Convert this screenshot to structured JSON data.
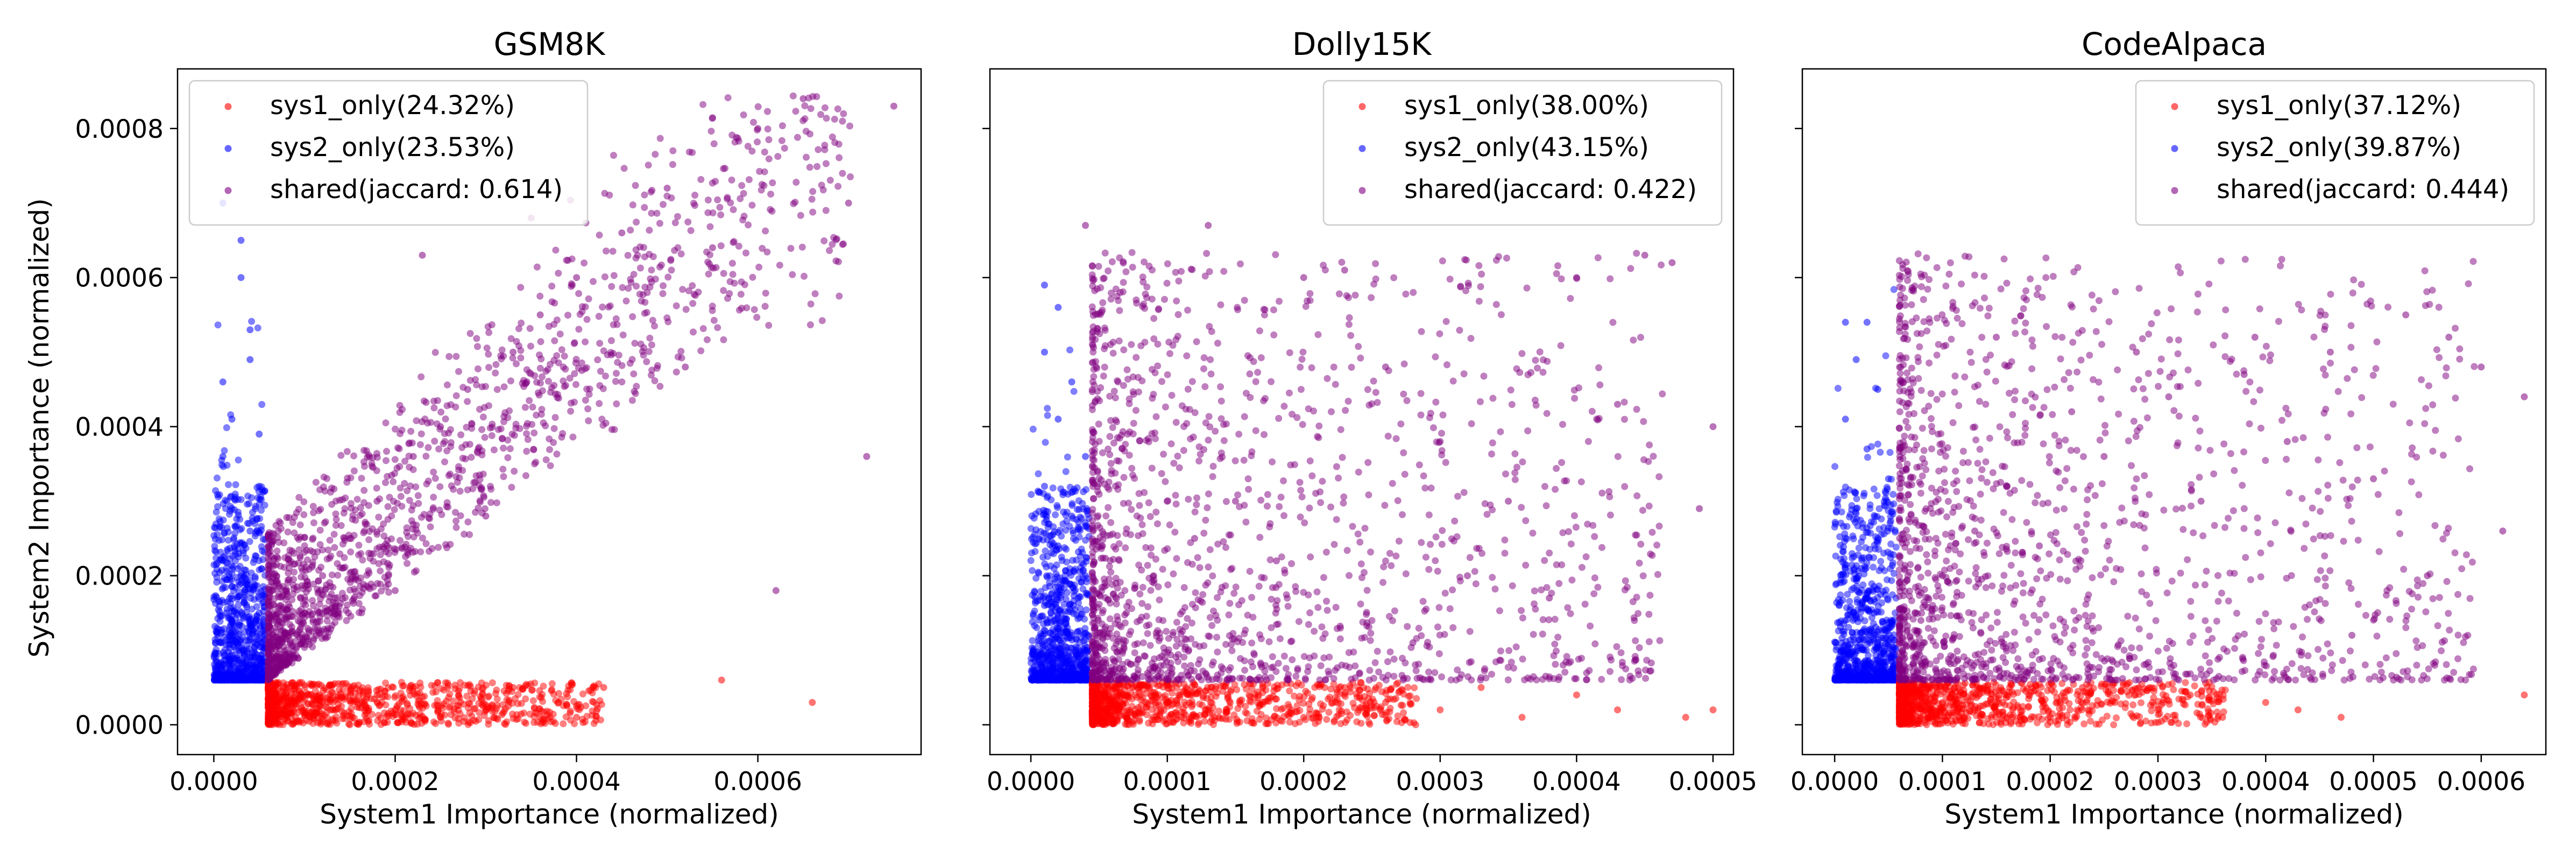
{
  "figure": {
    "ylabel": "System2 Importance (normalized)"
  },
  "colors": {
    "sys1_only": "#ff0000",
    "sys2_only": "#0000ff",
    "shared": "#800080"
  },
  "chart_data": [
    {
      "type": "scatter",
      "title": "GSM8K",
      "xlabel": "System1 Importance (normalized)",
      "ylabel": "System2 Importance (normalized)",
      "xlim": [
        -4e-05,
        0.00078
      ],
      "ylim": [
        -4e-05,
        0.00088
      ],
      "xticks": [
        0.0,
        0.0002,
        0.0004,
        0.0006
      ],
      "xtick_labels": [
        "0.0000",
        "0.0002",
        "0.0004",
        "0.0006"
      ],
      "yticks": [
        0.0,
        0.0002,
        0.0004,
        0.0006,
        0.0008
      ],
      "ytick_labels": [
        "0.0000",
        "0.0002",
        "0.0004",
        "0.0006",
        "0.0008"
      ],
      "legend_position": "top-left",
      "x_threshold": 6e-05,
      "y_threshold": 6e-05,
      "series": [
        {
          "name": "sys1_only(24.32%)",
          "color_key": "sys1_only",
          "points": [
            [
              7e-05,
              2e-05
            ],
            [
              9e-05,
              1e-05
            ],
            [
              0.00012,
              3e-05
            ],
            [
              0.00015,
              0.0
            ],
            [
              0.00018,
              4e-05
            ],
            [
              0.0002,
              2e-05
            ],
            [
              0.00022,
              5e-05
            ],
            [
              0.00025,
              1e-05
            ],
            [
              0.00027,
              4e-05
            ],
            [
              0.0003,
              2e-05
            ],
            [
              0.00033,
              5e-05
            ],
            [
              0.00036,
              1e-05
            ],
            [
              0.00038,
              3e-05
            ],
            [
              0.0004,
              1e-05
            ],
            [
              0.00043,
              5e-05
            ],
            [
              0.00056,
              6e-05
            ],
            [
              0.00066,
              3e-05
            ]
          ]
        },
        {
          "name": "sys2_only(23.53%)",
          "color_key": "sys2_only",
          "points": [
            [
              1e-05,
              0.0007
            ],
            [
              3e-05,
              0.00065
            ],
            [
              3e-05,
              0.0006
            ],
            [
              4e-05,
              0.00053
            ],
            [
              4e-05,
              0.00049
            ],
            [
              1e-05,
              0.00046
            ],
            [
              2e-05,
              0.00041
            ],
            [
              5e-05,
              0.00039
            ],
            [
              1e-05,
              0.00036
            ],
            [
              5e-05,
              0.00032
            ],
            [
              2e-05,
              0.00029
            ],
            [
              4e-05,
              0.00026
            ],
            [
              1e-05,
              0.00022
            ],
            [
              3e-05,
              0.00019
            ],
            [
              5e-05,
              0.00015
            ],
            [
              2e-05,
              0.00012
            ],
            [
              4e-05,
              9e-05
            ],
            [
              1e-05,
              8e-05
            ]
          ]
        },
        {
          "name": "shared(jaccard: 0.614)",
          "color_key": "shared",
          "points": [
            [
              8e-05,
              8e-05
            ],
            [
              0.0001,
              0.00015
            ],
            [
              0.00012,
              0.0002
            ],
            [
              0.00015,
              0.00025
            ],
            [
              0.00018,
              0.0003
            ],
            [
              0.0002,
              0.00018
            ],
            [
              0.00022,
              0.00036
            ],
            [
              0.00025,
              0.0004
            ],
            [
              0.00028,
              0.00045
            ],
            [
              0.0003,
              0.00028
            ],
            [
              0.00033,
              0.0005
            ],
            [
              0.00036,
              0.00055
            ],
            [
              0.0004,
              0.0006
            ],
            [
              0.00045,
              0.00066
            ],
            [
              0.0005,
              0.00072
            ],
            [
              0.00055,
              0.00064
            ],
            [
              0.0006,
              0.0008
            ],
            [
              0.00065,
              0.00084
            ],
            [
              0.0007,
              0.0007
            ],
            [
              0.00075,
              0.00083
            ],
            [
              0.00062,
              0.00018
            ],
            [
              0.00072,
              0.00036
            ],
            [
              0.00052,
              0.00048
            ],
            [
              0.00035,
              0.00068
            ],
            [
              0.00023,
              0.00063
            ]
          ]
        }
      ]
    },
    {
      "type": "scatter",
      "title": "Dolly15K",
      "xlabel": "System1 Importance (normalized)",
      "ylabel": "",
      "xlim": [
        -3e-05,
        0.000515
      ],
      "ylim": [
        -4e-05,
        0.00088
      ],
      "xticks": [
        0.0,
        0.0001,
        0.0002,
        0.0003,
        0.0004,
        0.0005
      ],
      "xtick_labels": [
        "0.0000",
        "0.0001",
        "0.0002",
        "0.0003",
        "0.0004",
        "0.0005"
      ],
      "yticks": [
        0.0,
        0.0002,
        0.0004,
        0.0006,
        0.0008
      ],
      "ytick_labels": [],
      "legend_position": "top-right",
      "x_threshold": 4.5e-05,
      "y_threshold": 6e-05,
      "series": [
        {
          "name": "sys1_only(38.00%)",
          "color_key": "sys1_only",
          "points": [
            [
              5e-05,
              2e-05
            ],
            [
              7e-05,
              1e-05
            ],
            [
              0.0001,
              3e-05
            ],
            [
              0.00013,
              2e-05
            ],
            [
              0.00016,
              4e-05
            ],
            [
              0.0002,
              1e-05
            ],
            [
              0.00023,
              5e-05
            ],
            [
              0.00026,
              3e-05
            ],
            [
              0.0003,
              2e-05
            ],
            [
              0.00033,
              5e-05
            ],
            [
              0.00036,
              1e-05
            ],
            [
              0.0004,
              4e-05
            ],
            [
              0.00043,
              2e-05
            ],
            [
              0.00048,
              1e-05
            ],
            [
              0.0005,
              2e-05
            ]
          ]
        },
        {
          "name": "sys2_only(43.15%)",
          "color_key": "sys2_only",
          "points": [
            [
              1e-05,
              0.00059
            ],
            [
              2e-05,
              0.00056
            ],
            [
              1e-05,
              0.0005
            ],
            [
              3e-05,
              0.00046
            ],
            [
              2e-05,
              0.00041
            ],
            [
              4e-05,
              0.00036
            ],
            [
              1e-05,
              0.00032
            ],
            [
              3e-05,
              0.00028
            ],
            [
              2e-05,
              0.00024
            ],
            [
              4e-05,
              0.0002
            ],
            [
              1e-05,
              0.00016
            ],
            [
              3e-05,
              0.00012
            ],
            [
              2e-05,
              9e-05
            ],
            [
              4e-05,
              7e-05
            ]
          ]
        },
        {
          "name": "shared(jaccard: 0.422)",
          "color_key": "shared",
          "points": [
            [
              5e-05,
              8e-05
            ],
            [
              7e-05,
              0.00015
            ],
            [
              9e-05,
              0.0002
            ],
            [
              0.00012,
              0.00025
            ],
            [
              0.00015,
              0.0003
            ],
            [
              0.00018,
              0.00022
            ],
            [
              0.0002,
              0.0006
            ],
            [
              0.00023,
              0.00061
            ],
            [
              0.00026,
              0.00048
            ],
            [
              0.0003,
              0.00038
            ],
            [
              0.00032,
              0.0002
            ],
            [
              0.00035,
              0.0003
            ],
            [
              0.0004,
              0.0006
            ],
            [
              0.00043,
              0.00043
            ],
            [
              0.00045,
              0.00063
            ],
            [
              0.00047,
              0.00062
            ],
            [
              0.0005,
              0.0004
            ],
            [
              0.00049,
              0.00029
            ],
            [
              0.00038,
              0.00017
            ],
            [
              0.00028,
              0.00011
            ],
            [
              0.00013,
              0.00067
            ],
            [
              4e-05,
              0.00067
            ]
          ]
        }
      ]
    },
    {
      "type": "scatter",
      "title": "CodeAlpaca",
      "xlabel": "System1 Importance (normalized)",
      "ylabel": "",
      "xlim": [
        -3e-05,
        0.00066
      ],
      "ylim": [
        -4e-05,
        0.00088
      ],
      "xticks": [
        0.0,
        0.0001,
        0.0002,
        0.0003,
        0.0004,
        0.0005,
        0.0006
      ],
      "xtick_labels": [
        "0.0000",
        "0.0001",
        "0.0002",
        "0.0003",
        "0.0004",
        "0.0005",
        "0.0006"
      ],
      "yticks": [
        0.0,
        0.0002,
        0.0004,
        0.0006,
        0.0008
      ],
      "ytick_labels": [],
      "legend_position": "top-right",
      "x_threshold": 6e-05,
      "y_threshold": 6e-05,
      "series": [
        {
          "name": "sys1_only(37.12%)",
          "color_key": "sys1_only",
          "points": [
            [
              6e-05,
              2e-05
            ],
            [
              8e-05,
              1e-05
            ],
            [
              0.0001,
              3e-05
            ],
            [
              0.00013,
              2e-05
            ],
            [
              0.00016,
              4e-05
            ],
            [
              0.0002,
              1e-05
            ],
            [
              0.00023,
              5e-05
            ],
            [
              0.00026,
              3e-05
            ],
            [
              0.0003,
              2e-05
            ],
            [
              0.00033,
              4e-05
            ],
            [
              0.00036,
              1e-05
            ],
            [
              0.0004,
              3e-05
            ],
            [
              0.00043,
              2e-05
            ],
            [
              0.00047,
              1e-05
            ],
            [
              0.00064,
              4e-05
            ]
          ]
        },
        {
          "name": "sys2_only(39.87%)",
          "color_key": "sys2_only",
          "points": [
            [
              1e-05,
              0.00054
            ],
            [
              3e-05,
              0.00054
            ],
            [
              2e-05,
              0.00049
            ],
            [
              4e-05,
              0.00045
            ],
            [
              1e-05,
              0.00041
            ],
            [
              3e-05,
              0.00037
            ],
            [
              5e-05,
              0.00033
            ],
            [
              2e-05,
              0.00029
            ],
            [
              4e-05,
              0.00025
            ],
            [
              1e-05,
              0.00021
            ],
            [
              3e-05,
              0.00017
            ],
            [
              5e-05,
              0.00013
            ],
            [
              2e-05,
              0.0001
            ],
            [
              4e-05,
              7e-05
            ]
          ]
        },
        {
          "name": "shared(jaccard: 0.444)",
          "color_key": "shared",
          "points": [
            [
              6e-05,
              8e-05
            ],
            [
              8e-05,
              0.00014
            ],
            [
              0.0001,
              0.0002
            ],
            [
              0.00013,
              0.00026
            ],
            [
              0.00016,
              0.00032
            ],
            [
              0.00019,
              0.00024
            ],
            [
              0.00022,
              0.00042
            ],
            [
              0.00025,
              0.00036
            ],
            [
              0.00028,
              0.0005
            ],
            [
              0.00031,
              0.00044
            ],
            [
              0.00034,
              0.0003
            ],
            [
              0.00038,
              0.00047
            ],
            [
              0.00042,
              0.00038
            ],
            [
              0.00046,
              0.0005
            ],
            [
              0.0005,
              0.00033
            ],
            [
              0.00053,
              0.00055
            ],
            [
              0.00057,
              0.00052
            ],
            [
              0.0006,
              0.00048
            ],
            [
              0.00062,
              0.00026
            ],
            [
              0.00064,
              0.00044
            ],
            [
              0.00055,
              0.0002
            ],
            [
              0.00048,
              0.00012
            ],
            [
              0.00015,
              0.00052
            ],
            [
              0.00039,
              0.00052
            ]
          ]
        }
      ]
    }
  ]
}
